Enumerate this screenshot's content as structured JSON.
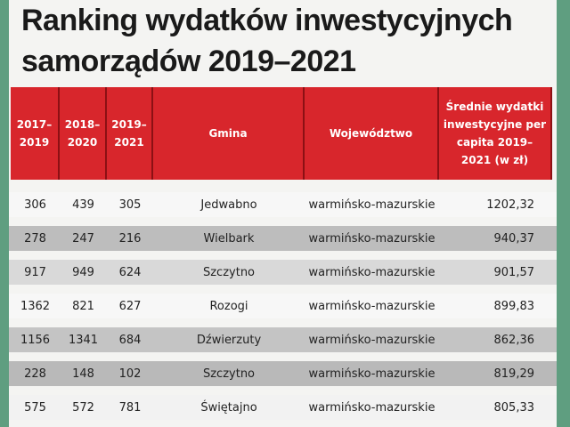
{
  "header": {
    "title_lines": [
      "Ranking wydatków inwestycyjnych",
      "samorządów 2019–2021"
    ]
  },
  "table": {
    "columns": [
      "2017–2019",
      "2018–2020",
      "2019–2021",
      "Gmina",
      "Województwo",
      "Średnie wydatki inwestycyjne per capita 2019–2021 (w zł)"
    ],
    "rows": [
      [
        "306",
        "439",
        "305",
        "Jedwabno",
        "warmińsko-mazurskie",
        "1202,32"
      ],
      [
        "278",
        "247",
        "216",
        "Wielbark",
        "warmińsko-mazurskie",
        "940,37"
      ],
      [
        "917",
        "949",
        "624",
        "Szczytno",
        "warmińsko-mazurskie",
        "901,57"
      ],
      [
        "1362",
        "821",
        "627",
        "Rozogi",
        "warmińsko-mazurskie",
        "899,83"
      ],
      [
        "1156",
        "1341",
        "684",
        "Dźwierzuty",
        "warmińsko-mazurskie",
        "862,36"
      ],
      [
        "228",
        "148",
        "102",
        "Szczytno",
        "warmińsko-mazurskie",
        "819,29"
      ],
      [
        "575",
        "572",
        "781",
        "Świętajno",
        "warmińsko-mazurskie",
        "805,33"
      ]
    ]
  }
}
